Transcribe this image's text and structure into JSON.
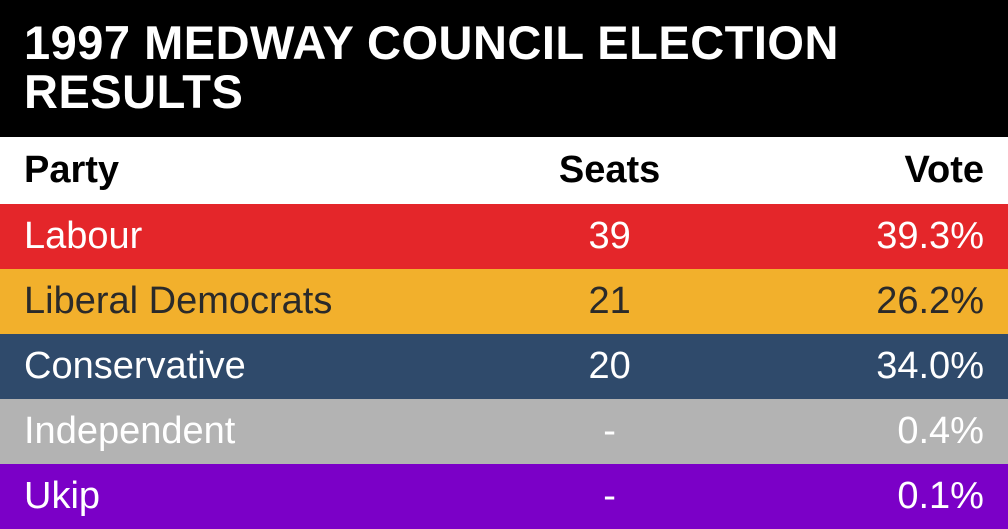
{
  "title": "1997 MEDWAY COUNCIL ELECTION RESULTS",
  "type": "table",
  "title_bg": "#000000",
  "title_color": "#ffffff",
  "title_fontsize": 47,
  "header_bg": "#ffffff",
  "header_color": "#000000",
  "header_fontsize": 38,
  "row_fontsize": 38,
  "columns": {
    "party": {
      "label": "Party",
      "align": "left",
      "width_pct": 52
    },
    "seats": {
      "label": "Seats",
      "align": "center",
      "width_pct": 18
    },
    "vote": {
      "label": "Vote",
      "align": "right",
      "width_pct": 30
    }
  },
  "rows": [
    {
      "party": "Labour",
      "seats": "39",
      "vote": "39.3%",
      "bg": "#e4262a",
      "text": "#ffffff"
    },
    {
      "party": "Liberal Democrats",
      "seats": "21",
      "vote": "26.2%",
      "bg": "#f2b02c",
      "text": "#2a2a2a"
    },
    {
      "party": "Conservative",
      "seats": "20",
      "vote": "34.0%",
      "bg": "#2f4a6b",
      "text": "#ffffff"
    },
    {
      "party": "Independent",
      "seats": "-",
      "vote": "0.4%",
      "bg": "#b3b3b3",
      "text": "#ffffff"
    },
    {
      "party": "Ukip",
      "seats": "-",
      "vote": "0.1%",
      "bg": "#7b00c7",
      "text": "#ffffff"
    }
  ]
}
